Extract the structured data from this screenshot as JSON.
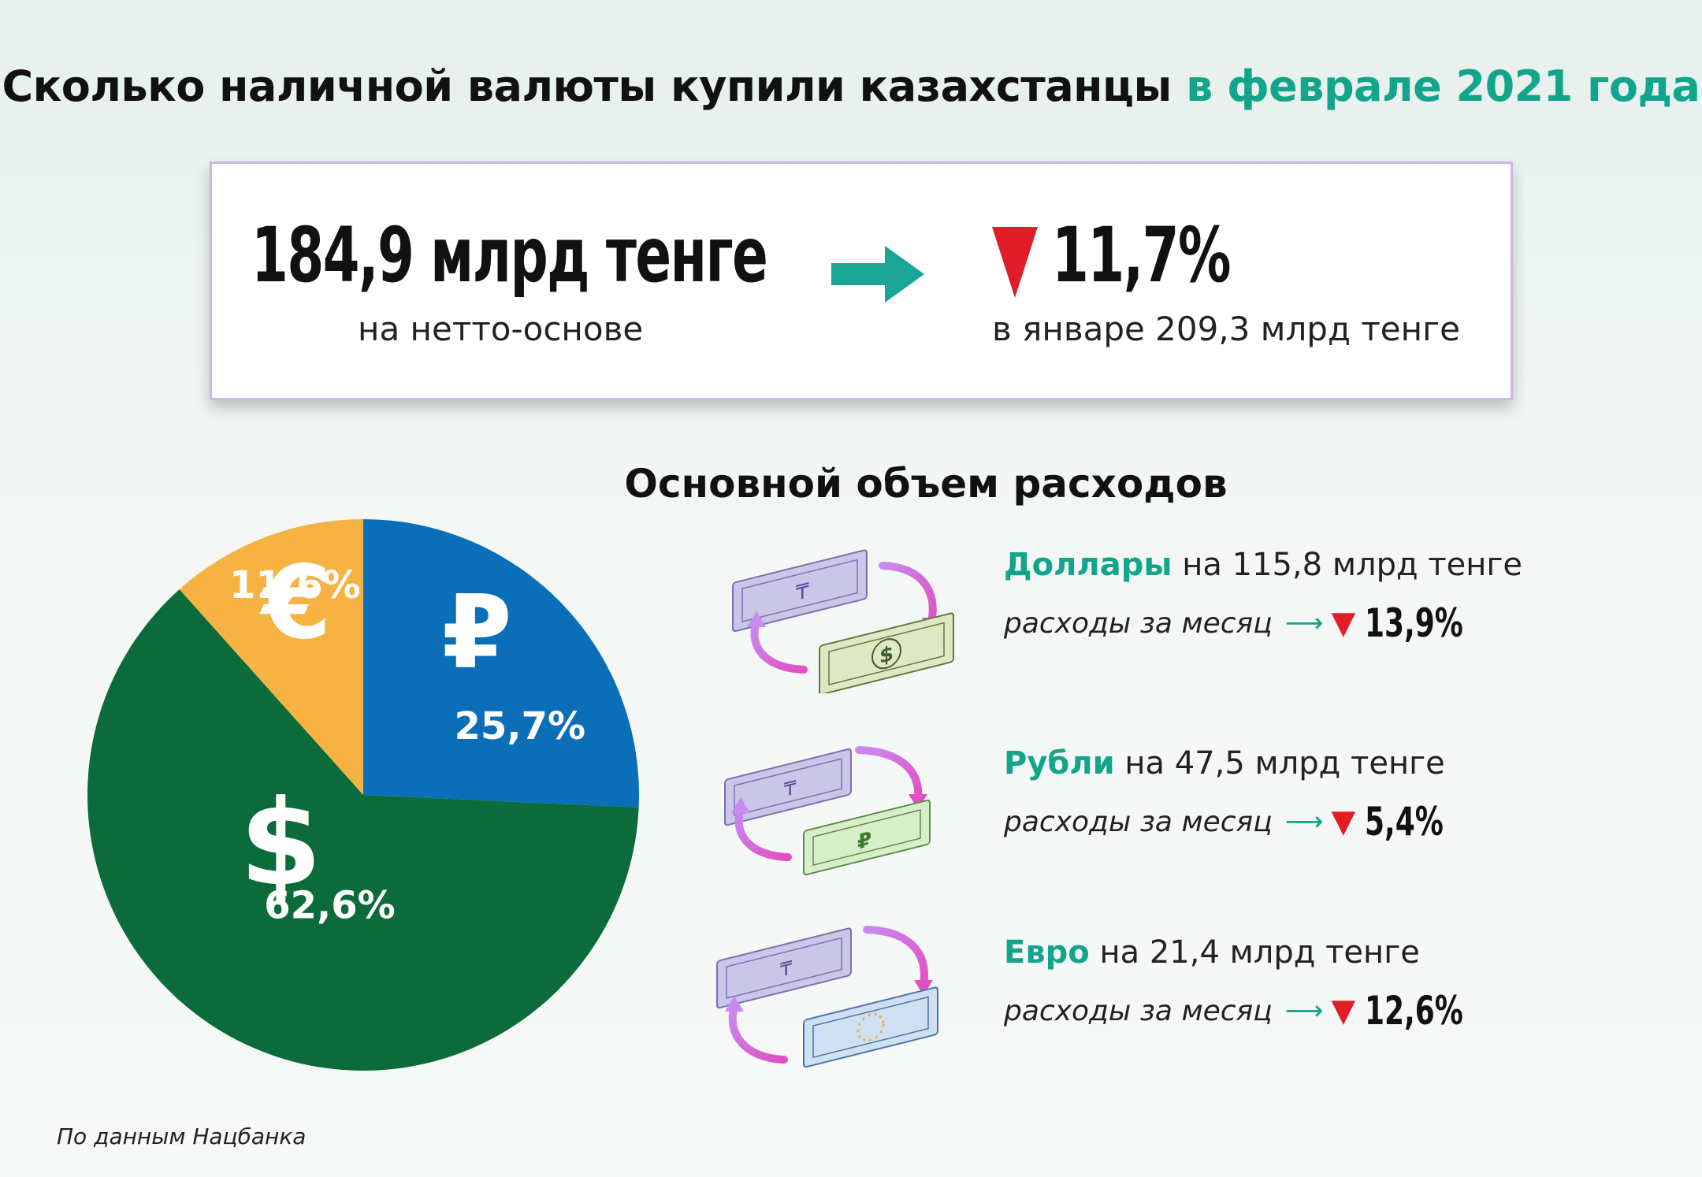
{
  "header": {
    "title_main": "Сколько наличной валюты купили казахстанцы",
    "title_accent": "в феврале 2021 года"
  },
  "summary": {
    "amount": "184,9 млрд тенге",
    "amount_sub": "на нетто-основе",
    "change": "11,7%",
    "change_sub": "в январе 209,3 млрд тенге",
    "arrow_color": "#1aa596",
    "down_color": "#e11d2a"
  },
  "section": {
    "title": "Основной объем расходов"
  },
  "chart_data": {
    "type": "pie",
    "title": "",
    "slices": [
      {
        "label": "Рубли",
        "value": 25.7,
        "display": "25,7%",
        "color": "#0a6fb8",
        "symbol": "₽"
      },
      {
        "label": "Доллары",
        "value": 62.6,
        "display": "62,6%",
        "color": "#0b6b3a",
        "symbol": "$"
      },
      {
        "label": "Евро",
        "value": 11.6,
        "display": "11,6%",
        "color": "#f7b244",
        "symbol": "€"
      }
    ]
  },
  "currencies": [
    {
      "name": "Доллары",
      "amount_text": "на 115,8 млрд тенге",
      "spend_label": "расходы за месяц",
      "change": "13,9%",
      "icon": "dollar-exchange-icon"
    },
    {
      "name": "Рубли",
      "amount_text": "на 47,5 млрд тенге",
      "spend_label": "расходы за месяц",
      "change": "5,4%",
      "icon": "ruble-exchange-icon"
    },
    {
      "name": "Евро",
      "amount_text": "на 21,4 млрд тенге",
      "spend_label": "расходы за месяц",
      "change": "12,6%",
      "icon": "euro-exchange-icon"
    }
  ],
  "footer": {
    "source": "По данным Нацбанка"
  }
}
